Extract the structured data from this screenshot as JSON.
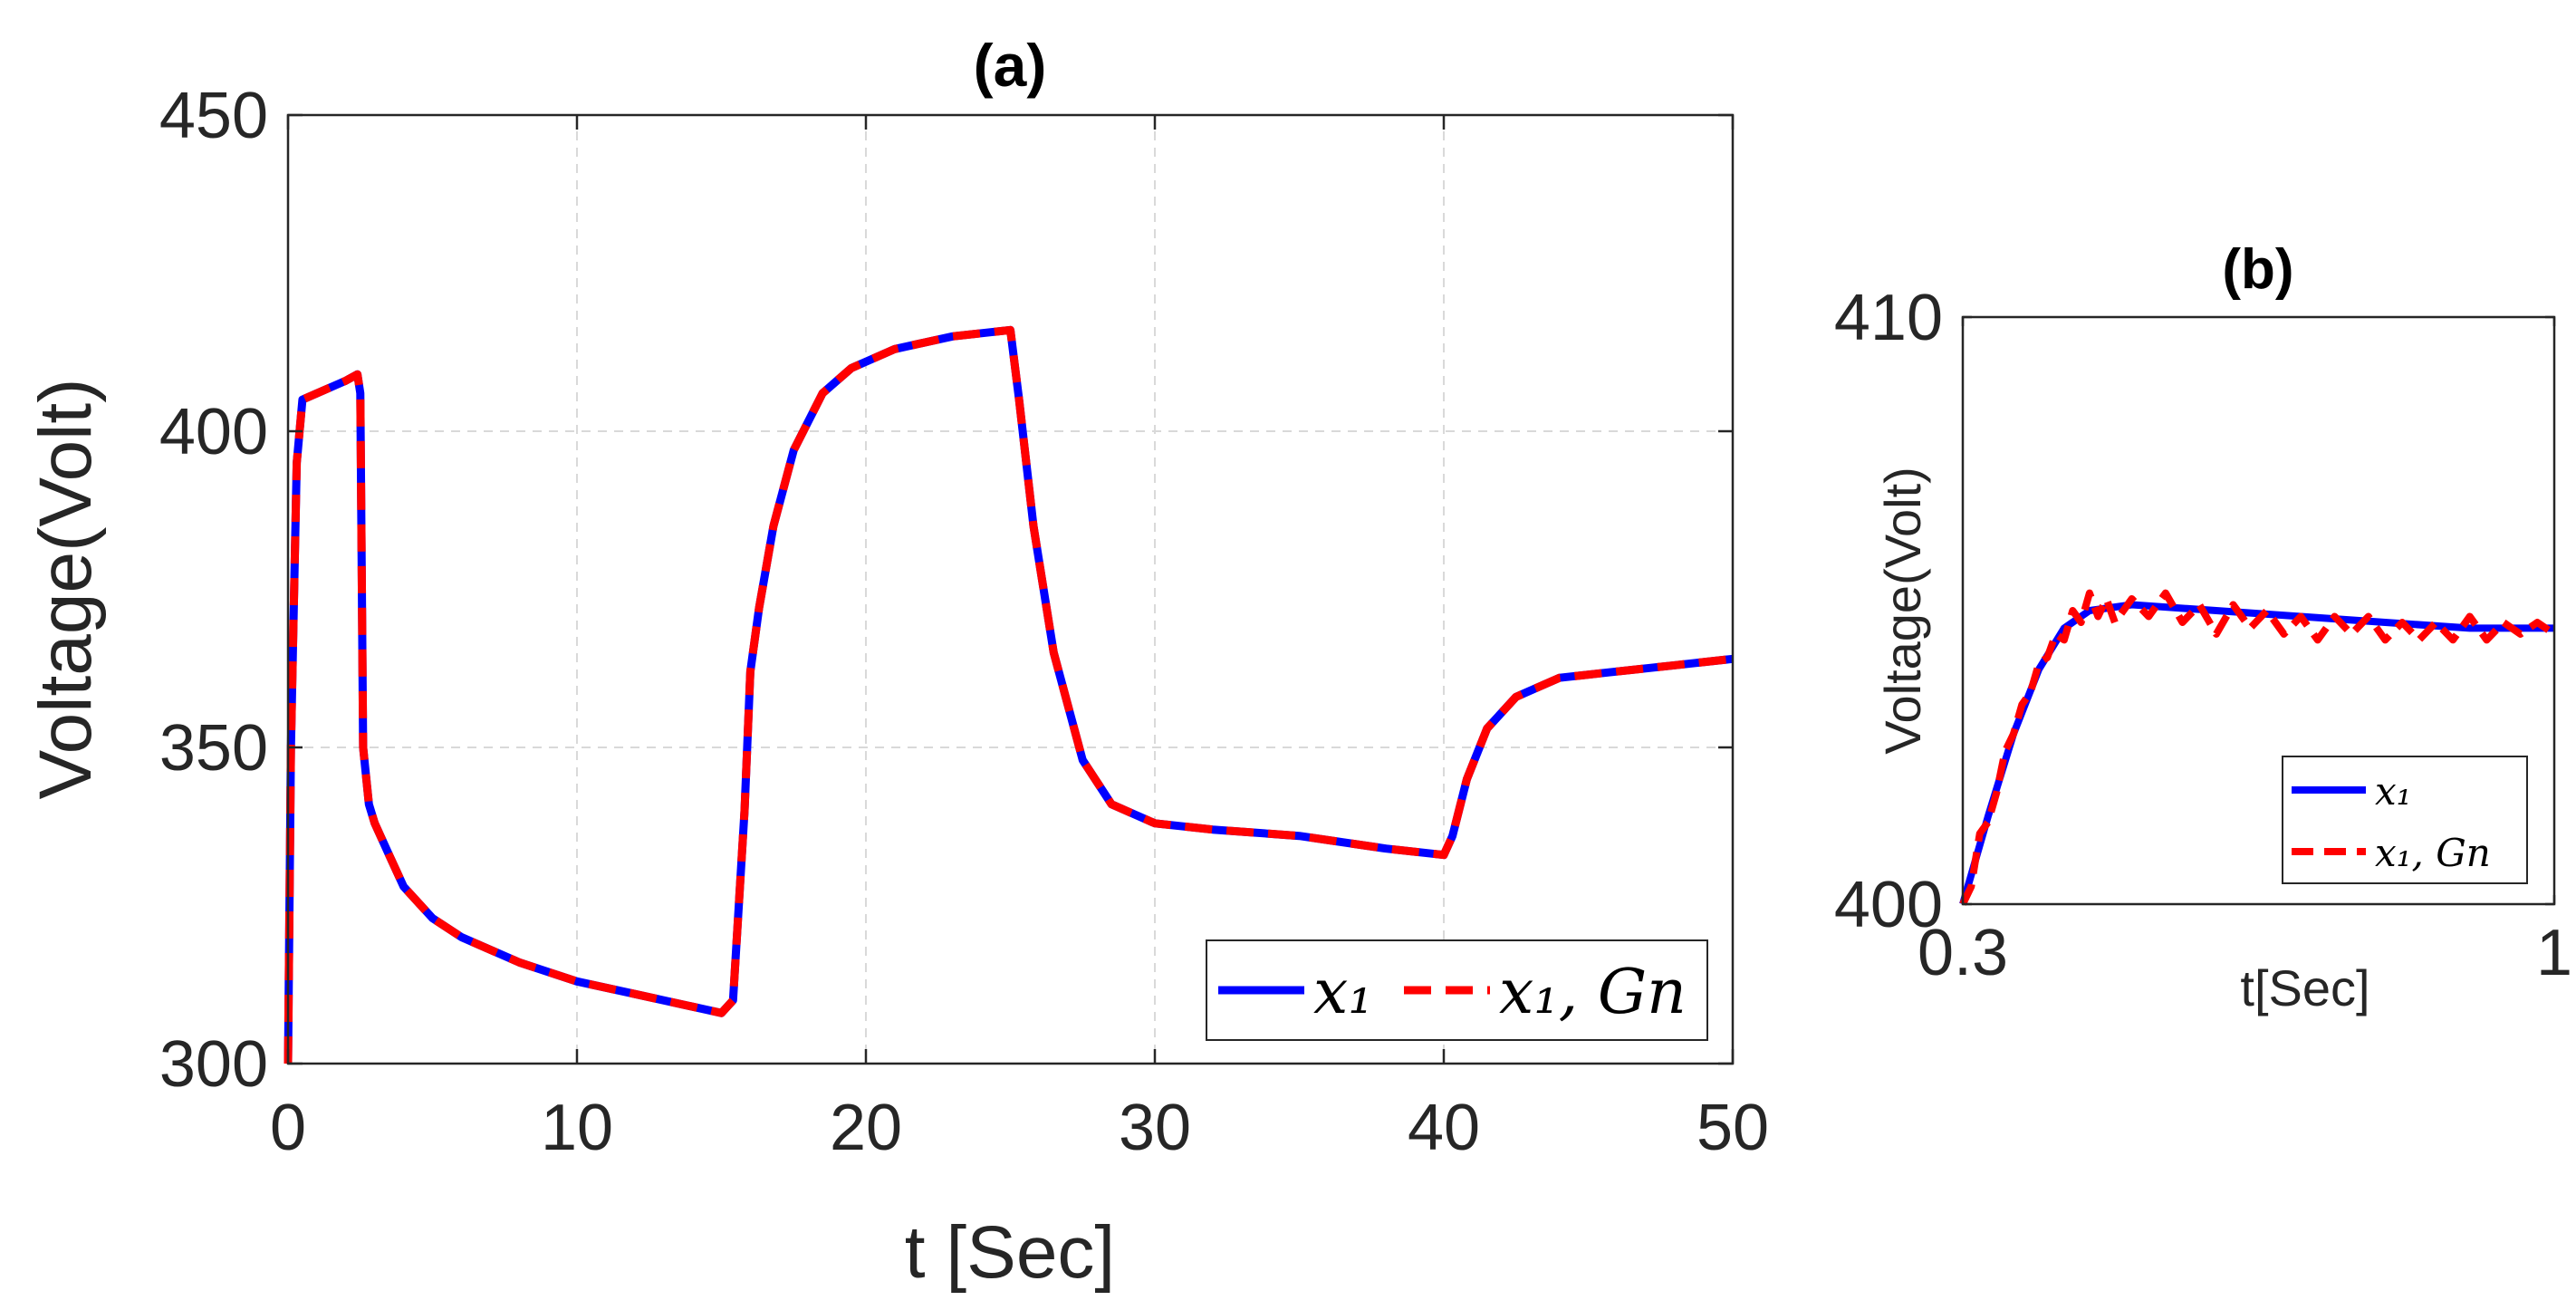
{
  "chart_data": [
    {
      "id": "a",
      "type": "line",
      "title": "(a)",
      "xlabel": "t [Sec]",
      "ylabel": "Voltage(Volt)",
      "xlim": [
        0,
        50
      ],
      "ylim": [
        300,
        450
      ],
      "xticks": [
        0,
        10,
        20,
        30,
        40,
        50
      ],
      "yticks": [
        300,
        350,
        400,
        450
      ],
      "xtick_labels": [
        "0",
        "10",
        "20",
        "30",
        "40",
        "50"
      ],
      "ytick_labels": [
        "300",
        "350",
        "400",
        "450"
      ],
      "grid": true,
      "legend_position": "bottom-right",
      "series": [
        {
          "name": "x_1",
          "legend_label": "x₁",
          "color": "#0000ff",
          "style": "solid",
          "points": [
            [
              0,
              300
            ],
            [
              0.1,
              350
            ],
            [
              0.3,
              395
            ],
            [
              0.5,
              405
            ],
            [
              1,
              406
            ],
            [
              2,
              408
            ],
            [
              2.4,
              409
            ],
            [
              2.5,
              406
            ],
            [
              2.6,
              350
            ],
            [
              2.8,
              341
            ],
            [
              3,
              338
            ],
            [
              3.5,
              333
            ],
            [
              4,
              328
            ],
            [
              5,
              323
            ],
            [
              6,
              320
            ],
            [
              8,
              316
            ],
            [
              10,
              313
            ],
            [
              12,
              311
            ],
            [
              14,
              309
            ],
            [
              15,
              308
            ],
            [
              15.4,
              310
            ],
            [
              15.8,
              340
            ],
            [
              16,
              362
            ],
            [
              16.3,
              372
            ],
            [
              16.8,
              385
            ],
            [
              17.5,
              397
            ],
            [
              18.5,
              406
            ],
            [
              19.5,
              410
            ],
            [
              21,
              413
            ],
            [
              23,
              415
            ],
            [
              25,
              416
            ],
            [
              25.3,
              405
            ],
            [
              25.8,
              385
            ],
            [
              26.5,
              365
            ],
            [
              27.5,
              348
            ],
            [
              28.5,
              341
            ],
            [
              30,
              338
            ],
            [
              32,
              337
            ],
            [
              35,
              336
            ],
            [
              38,
              334
            ],
            [
              40,
              333
            ],
            [
              40.3,
              336
            ],
            [
              40.8,
              345
            ],
            [
              41.5,
              353
            ],
            [
              42.5,
              358
            ],
            [
              44,
              361
            ],
            [
              46,
              362
            ],
            [
              48,
              363
            ],
            [
              50,
              364
            ]
          ]
        },
        {
          "name": "x_1,Gn",
          "legend_label": "x₁, Gn",
          "color": "#ff0000",
          "style": "dashed",
          "points": [
            [
              0,
              300
            ],
            [
              0.1,
              350
            ],
            [
              0.3,
              395
            ],
            [
              0.5,
              405
            ],
            [
              1,
              406
            ],
            [
              2,
              408
            ],
            [
              2.4,
              409
            ],
            [
              2.5,
              406
            ],
            [
              2.6,
              350
            ],
            [
              2.8,
              341
            ],
            [
              3,
              338
            ],
            [
              3.5,
              333
            ],
            [
              4,
              328
            ],
            [
              5,
              323
            ],
            [
              6,
              320
            ],
            [
              8,
              316
            ],
            [
              10,
              313
            ],
            [
              12,
              311
            ],
            [
              14,
              309
            ],
            [
              15,
              308
            ],
            [
              15.4,
              310
            ],
            [
              15.8,
              340
            ],
            [
              16,
              362
            ],
            [
              16.3,
              372
            ],
            [
              16.8,
              385
            ],
            [
              17.5,
              397
            ],
            [
              18.5,
              406
            ],
            [
              19.5,
              410
            ],
            [
              21,
              413
            ],
            [
              23,
              415
            ],
            [
              25,
              416
            ],
            [
              25.3,
              405
            ],
            [
              25.8,
              385
            ],
            [
              26.5,
              365
            ],
            [
              27.5,
              348
            ],
            [
              28.5,
              341
            ],
            [
              30,
              338
            ],
            [
              32,
              337
            ],
            [
              35,
              336
            ],
            [
              38,
              334
            ],
            [
              40,
              333
            ],
            [
              40.3,
              336
            ],
            [
              40.8,
              345
            ],
            [
              41.5,
              353
            ],
            [
              42.5,
              358
            ],
            [
              44,
              361
            ],
            [
              46,
              362
            ],
            [
              48,
              363
            ],
            [
              50,
              364
            ]
          ]
        }
      ]
    },
    {
      "id": "b",
      "type": "line",
      "title": "(b)",
      "xlabel": "t[Sec]",
      "ylabel": "Voltage(Volt)",
      "xlim": [
        0.3,
        1
      ],
      "ylim": [
        400,
        410
      ],
      "xticks": [
        0.3,
        1
      ],
      "yticks": [
        400,
        410
      ],
      "xtick_labels": [
        "0.3",
        "1"
      ],
      "ytick_labels": [
        "400",
        "410"
      ],
      "grid": false,
      "legend_position": "bottom-right",
      "series": [
        {
          "name": "x_1",
          "legend_label": "x₁",
          "color": "#0000ff",
          "style": "solid",
          "points": [
            [
              0.3,
              400
            ],
            [
              0.33,
              401.5
            ],
            [
              0.36,
              402.9
            ],
            [
              0.39,
              404
            ],
            [
              0.42,
              404.7
            ],
            [
              0.45,
              405
            ],
            [
              0.5,
              405.1
            ],
            [
              0.6,
              405
            ],
            [
              0.7,
              404.9
            ],
            [
              0.8,
              404.8
            ],
            [
              0.9,
              404.7
            ],
            [
              1,
              404.7
            ]
          ]
        },
        {
          "name": "x_1,Gn",
          "legend_label": "x₁, Gn",
          "color": "#ff0000",
          "style": "dashed",
          "points": [
            [
              0.3,
              400
            ],
            [
              0.31,
              400.3
            ],
            [
              0.32,
              401.2
            ],
            [
              0.33,
              401.4
            ],
            [
              0.34,
              401.9
            ],
            [
              0.35,
              402.6
            ],
            [
              0.36,
              402.9
            ],
            [
              0.37,
              403.4
            ],
            [
              0.38,
              403.6
            ],
            [
              0.39,
              404.1
            ],
            [
              0.4,
              404.2
            ],
            [
              0.41,
              404.6
            ],
            [
              0.42,
              404.5
            ],
            [
              0.43,
              405
            ],
            [
              0.44,
              404.8
            ],
            [
              0.45,
              405.3
            ],
            [
              0.46,
              404.9
            ],
            [
              0.47,
              405.2
            ],
            [
              0.48,
              404.8
            ],
            [
              0.5,
              405.2
            ],
            [
              0.52,
              404.9
            ],
            [
              0.54,
              405.3
            ],
            [
              0.56,
              404.8
            ],
            [
              0.58,
              405.1
            ],
            [
              0.6,
              404.6
            ],
            [
              0.62,
              405.1
            ],
            [
              0.64,
              404.7
            ],
            [
              0.66,
              405
            ],
            [
              0.68,
              404.6
            ],
            [
              0.7,
              404.9
            ],
            [
              0.72,
              404.5
            ],
            [
              0.74,
              404.9
            ],
            [
              0.76,
              404.6
            ],
            [
              0.78,
              404.9
            ],
            [
              0.8,
              404.5
            ],
            [
              0.82,
              404.8
            ],
            [
              0.84,
              404.5
            ],
            [
              0.86,
              404.8
            ],
            [
              0.88,
              404.5
            ],
            [
              0.9,
              404.9
            ],
            [
              0.92,
              404.5
            ],
            [
              0.94,
              404.8
            ],
            [
              0.96,
              404.6
            ],
            [
              0.98,
              404.8
            ],
            [
              1,
              404.6
            ]
          ]
        }
      ]
    }
  ]
}
